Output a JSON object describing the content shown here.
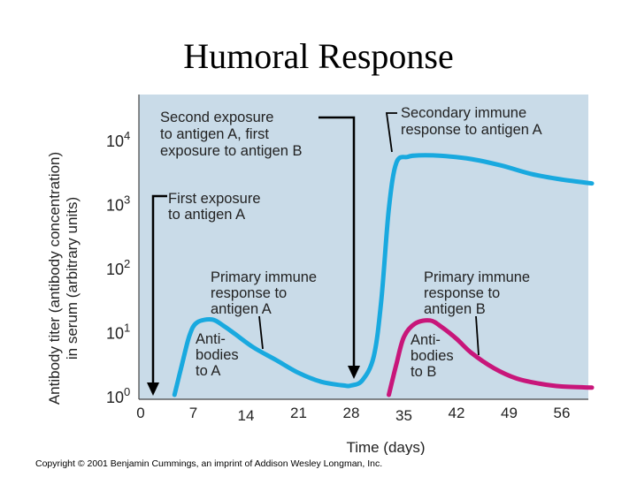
{
  "slide_title": "Humoral Response",
  "copyright": "Copyright © 2001 Benjamin Cummings, an imprint of Addison Wesley Longman, Inc.",
  "colors": {
    "panel_background": "#c9dbe8",
    "antibody_to_a": "#19a9df",
    "antibody_to_b": "#c8167a",
    "arrows": "#000000"
  },
  "chart_data": {
    "type": "line",
    "title": "",
    "xlabel": "Time (days)",
    "ylabel_lines": [
      "Antibody titer (antibody  concentration)",
      "in serum (arbitrary units)"
    ],
    "y_scale": "log",
    "xlim": [
      0,
      60
    ],
    "ylim": [
      1,
      50000
    ],
    "x_ticks_upper": [
      "0",
      "7",
      "21",
      "28",
      "42",
      "49",
      "56"
    ],
    "x_ticks_lower": [
      "14",
      "35"
    ],
    "y_ticks": [
      {
        "base": "10",
        "exp": "0"
      },
      {
        "base": "10",
        "exp": "1"
      },
      {
        "base": "10",
        "exp": "2"
      },
      {
        "base": "10",
        "exp": "3"
      },
      {
        "base": "10",
        "exp": "4"
      }
    ],
    "series": [
      {
        "label": "Antibodies to A",
        "color": "#19a9df",
        "points": [
          [
            4.5,
            1
          ],
          [
            5.5,
            3
          ],
          [
            6.5,
            8.5
          ],
          [
            7.5,
            13.5
          ],
          [
            9.5,
            15
          ],
          [
            11,
            12
          ],
          [
            12.5,
            9
          ],
          [
            15,
            5.5
          ],
          [
            18,
            3.5
          ],
          [
            21,
            2.2
          ],
          [
            24,
            1.6
          ],
          [
            27,
            1.4
          ],
          [
            28,
            1.4
          ],
          [
            29.5,
            1.7
          ],
          [
            31,
            4
          ],
          [
            32,
            30
          ],
          [
            33,
            800
          ],
          [
            34,
            4200
          ],
          [
            35.5,
            5200
          ],
          [
            37,
            5500
          ],
          [
            40,
            5400
          ],
          [
            44,
            4800
          ],
          [
            48,
            3800
          ],
          [
            52,
            2800
          ],
          [
            56,
            2300
          ],
          [
            60,
            2000
          ]
        ]
      },
      {
        "label": "Antibodies to B",
        "color": "#c8167a",
        "points": [
          [
            33,
            1
          ],
          [
            34,
            3
          ],
          [
            35,
            8
          ],
          [
            36.5,
            13
          ],
          [
            38.5,
            14.5
          ],
          [
            40,
            11.5
          ],
          [
            42,
            7.5
          ],
          [
            44,
            4.5
          ],
          [
            47,
            2.6
          ],
          [
            50,
            1.8
          ],
          [
            53,
            1.5
          ],
          [
            56,
            1.35
          ],
          [
            60,
            1.3
          ]
        ]
      }
    ],
    "annotations": [
      {
        "lines": [
          "First exposure",
          "to antigen A"
        ],
        "arrow_day": 1.5
      },
      {
        "lines": [
          "Second exposure",
          "to antigen A, first",
          "exposure to antigen B"
        ],
        "arrow_day": 28
      },
      {
        "lines": [
          "Secondary immune",
          "response to antigen A"
        ]
      },
      {
        "lines": [
          "Primary immune",
          "response to",
          "antigen A"
        ]
      },
      {
        "lines": [
          "Primary immune",
          "response to",
          "antigen B"
        ]
      },
      {
        "lines": [
          "Anti-",
          "bodies",
          "to A"
        ]
      },
      {
        "lines": [
          "Anti-",
          "bodies",
          "to B"
        ]
      }
    ]
  }
}
